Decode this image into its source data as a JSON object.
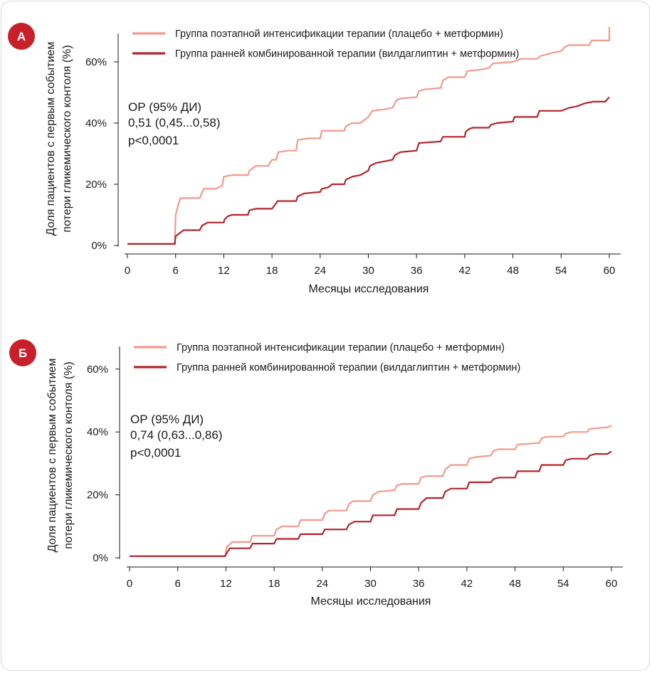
{
  "colors": {
    "stepwise": "#f29a8e",
    "early": "#b3252d",
    "badge": "#c8202a"
  },
  "chart_data": [
    {
      "id": "A",
      "type": "line",
      "badge": "А",
      "title": "",
      "xlabel": "Месяцы исследования",
      "ylabel_lines": [
        "Доля пациентов с первым событием",
        "потери гликемического контоля (%)"
      ],
      "xticks": [
        0,
        6,
        12,
        18,
        24,
        30,
        36,
        42,
        48,
        54,
        60
      ],
      "yticks": [
        0,
        20,
        40,
        60
      ],
      "ytick_labels": [
        "0%",
        "20%",
        "40%",
        "60%"
      ],
      "xlim": [
        -1,
        61.5
      ],
      "ylim": [
        -1,
        70
      ],
      "stats": [
        "ОР (95% ДИ)",
        "0,51 (0,45...0,58)",
        "p<0,0001"
      ],
      "legend_position": "top",
      "series": [
        {
          "name": "Группа поэтапной интенсификации терапии (плацебо + метформин)",
          "color_key": "stepwise",
          "points": [
            [
              0,
              0.5
            ],
            [
              5.9,
              0.5
            ],
            [
              6,
              10
            ],
            [
              6.3,
              13
            ],
            [
              6.6,
              15.5
            ],
            [
              9,
              15.5
            ],
            [
              9.5,
              18.5
            ],
            [
              11,
              18.5
            ],
            [
              11.8,
              19.5
            ],
            [
              12,
              22.5
            ],
            [
              13,
              23
            ],
            [
              15,
              23
            ],
            [
              15.2,
              24.5
            ],
            [
              16,
              26
            ],
            [
              17.5,
              26
            ],
            [
              18,
              28
            ],
            [
              18.5,
              28
            ],
            [
              18.8,
              30.5
            ],
            [
              20,
              31
            ],
            [
              21,
              31
            ],
            [
              21.2,
              34.5
            ],
            [
              22.5,
              35
            ],
            [
              24,
              35
            ],
            [
              24.2,
              37.5
            ],
            [
              27,
              37.5
            ],
            [
              27.2,
              39
            ],
            [
              28,
              40
            ],
            [
              29,
              40
            ],
            [
              30,
              42
            ],
            [
              30.5,
              44
            ],
            [
              32,
              44.5
            ],
            [
              33,
              45
            ],
            [
              33.5,
              47.5
            ],
            [
              34,
              48
            ],
            [
              36,
              48.5
            ],
            [
              36.3,
              50.5
            ],
            [
              37,
              51
            ],
            [
              39,
              51.5
            ],
            [
              39.3,
              54
            ],
            [
              40,
              55
            ],
            [
              42,
              55
            ],
            [
              42.3,
              57
            ],
            [
              44,
              57.5
            ],
            [
              45,
              58
            ],
            [
              45.5,
              59.5
            ],
            [
              48,
              60
            ],
            [
              49,
              61
            ],
            [
              51,
              61
            ],
            [
              51.5,
              62
            ],
            [
              53,
              63
            ],
            [
              54,
              63.5
            ],
            [
              54.5,
              65
            ],
            [
              55,
              65.5
            ],
            [
              57.5,
              65.5
            ],
            [
              57.8,
              67
            ],
            [
              60,
              67
            ],
            [
              60,
              71.5
            ]
          ]
        },
        {
          "name": "Группа ранней комбинированной терапии (вилдаглиптин + метформин)",
          "color_key": "early",
          "points": [
            [
              0,
              0.5
            ],
            [
              5.9,
              0.5
            ],
            [
              6,
              3
            ],
            [
              6.5,
              4
            ],
            [
              7,
              5
            ],
            [
              9,
              5
            ],
            [
              9.3,
              6.5
            ],
            [
              10,
              7.5
            ],
            [
              12,
              7.5
            ],
            [
              12.1,
              8.5
            ],
            [
              12.5,
              9.5
            ],
            [
              13,
              10
            ],
            [
              15,
              10
            ],
            [
              15.2,
              11.5
            ],
            [
              16,
              12
            ],
            [
              18,
              12
            ],
            [
              18.3,
              13
            ],
            [
              18.7,
              14.5
            ],
            [
              21,
              14.5
            ],
            [
              21.2,
              16
            ],
            [
              22,
              17
            ],
            [
              24,
              17.5
            ],
            [
              24.2,
              18.5
            ],
            [
              25,
              19
            ],
            [
              25.5,
              20
            ],
            [
              27,
              20
            ],
            [
              27.2,
              21.5
            ],
            [
              28,
              22.5
            ],
            [
              29,
              23
            ],
            [
              30,
              24.5
            ],
            [
              30.2,
              26
            ],
            [
              31,
              27
            ],
            [
              32,
              27.5
            ],
            [
              33,
              28
            ],
            [
              33.3,
              29.5
            ],
            [
              34,
              30.5
            ],
            [
              36,
              31
            ],
            [
              36.3,
              33.5
            ],
            [
              39,
              34
            ],
            [
              39.3,
              35.5
            ],
            [
              42,
              35.5
            ],
            [
              42.1,
              37
            ],
            [
              42.5,
              38
            ],
            [
              43,
              38.5
            ],
            [
              45,
              38.5
            ],
            [
              45.3,
              39.5
            ],
            [
              46,
              40
            ],
            [
              48,
              40.5
            ],
            [
              48.2,
              42
            ],
            [
              51,
              42
            ],
            [
              51.3,
              44
            ],
            [
              54,
              44
            ],
            [
              55,
              45
            ],
            [
              56,
              45.5
            ],
            [
              57,
              46.5
            ],
            [
              58,
              47
            ],
            [
              59.5,
              47
            ],
            [
              60,
              48.5
            ]
          ]
        }
      ]
    },
    {
      "id": "B",
      "type": "line",
      "badge": "Б",
      "title": "",
      "xlabel": "Месяцы исследования",
      "ylabel_lines": [
        "Доля пациентов с первым событием",
        "потери гликемического контоля (%)"
      ],
      "xticks": [
        0,
        6,
        12,
        18,
        24,
        30,
        36,
        42,
        48,
        54,
        60
      ],
      "yticks": [
        0,
        20,
        40,
        60
      ],
      "ytick_labels": [
        "0%",
        "20%",
        "40%",
        "60%"
      ],
      "xlim": [
        -1,
        61.5
      ],
      "ylim": [
        -1,
        67
      ],
      "stats": [
        "ОР (95% ДИ)",
        "0,74 (0,63...0,86)",
        "p<0,0001"
      ],
      "legend_position": "top",
      "series": [
        {
          "name": "Группа поэтапной интенсификации терапии (плацебо + метформин)",
          "color_key": "stepwise",
          "points": [
            [
              0,
              0.5
            ],
            [
              11.9,
              0.5
            ],
            [
              12.1,
              3.5
            ],
            [
              12.8,
              5
            ],
            [
              15,
              5
            ],
            [
              15.3,
              7
            ],
            [
              18,
              7
            ],
            [
              18.3,
              9
            ],
            [
              19,
              10
            ],
            [
              21,
              10
            ],
            [
              21.3,
              12
            ],
            [
              24,
              12
            ],
            [
              24.3,
              14
            ],
            [
              24.8,
              15
            ],
            [
              27,
              15
            ],
            [
              27.3,
              17
            ],
            [
              27.8,
              18
            ],
            [
              30,
              18
            ],
            [
              30.3,
              20
            ],
            [
              31,
              21
            ],
            [
              33,
              21.5
            ],
            [
              33.3,
              23
            ],
            [
              34,
              23.5
            ],
            [
              36,
              23.5
            ],
            [
              36.3,
              25.5
            ],
            [
              37,
              26
            ],
            [
              39,
              26
            ],
            [
              39.3,
              28
            ],
            [
              40,
              29.5
            ],
            [
              42,
              29.5
            ],
            [
              42.3,
              31.5
            ],
            [
              43,
              32
            ],
            [
              45,
              32.5
            ],
            [
              45.3,
              34
            ],
            [
              46,
              34.5
            ],
            [
              48,
              34.5
            ],
            [
              48.3,
              36
            ],
            [
              51,
              36.5
            ],
            [
              51.3,
              38
            ],
            [
              52,
              38.5
            ],
            [
              54,
              38.5
            ],
            [
              54.3,
              39.5
            ],
            [
              55,
              40
            ],
            [
              57,
              40
            ],
            [
              57.3,
              41
            ],
            [
              59.5,
              41.5
            ],
            [
              60,
              42
            ]
          ]
        },
        {
          "name": "Группа ранней комбинированной терапии (вилдаглиптин + метформин)",
          "color_key": "early",
          "points": [
            [
              0,
              0.5
            ],
            [
              11.9,
              0.5
            ],
            [
              12.1,
              1.5
            ],
            [
              12.5,
              3
            ],
            [
              15,
              3
            ],
            [
              15.3,
              4.5
            ],
            [
              18,
              4.5
            ],
            [
              18.3,
              6
            ],
            [
              21,
              6
            ],
            [
              21.3,
              7.5
            ],
            [
              24,
              7.5
            ],
            [
              24.3,
              9
            ],
            [
              27,
              9
            ],
            [
              27.3,
              10.5
            ],
            [
              28,
              11.5
            ],
            [
              30,
              11.5
            ],
            [
              30.3,
              13.5
            ],
            [
              33,
              13.5
            ],
            [
              33.3,
              15.5
            ],
            [
              36,
              15.5
            ],
            [
              36.3,
              17.5
            ],
            [
              37,
              19
            ],
            [
              39,
              19
            ],
            [
              39.3,
              21
            ],
            [
              40,
              22
            ],
            [
              42,
              22
            ],
            [
              42.3,
              24
            ],
            [
              45,
              24
            ],
            [
              45.3,
              25
            ],
            [
              46,
              25.5
            ],
            [
              48,
              25.5
            ],
            [
              48.3,
              27.5
            ],
            [
              51,
              27.5
            ],
            [
              51.3,
              29.5
            ],
            [
              54,
              29.5
            ],
            [
              54.3,
              31
            ],
            [
              55,
              31.5
            ],
            [
              57,
              31.5
            ],
            [
              57.3,
              32.5
            ],
            [
              58,
              33
            ],
            [
              59.5,
              33
            ],
            [
              60,
              33.8
            ]
          ]
        }
      ]
    }
  ]
}
